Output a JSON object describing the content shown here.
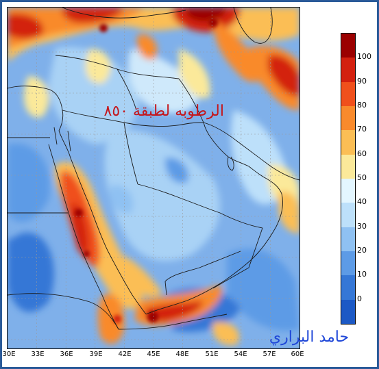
{
  "map": {
    "title": "الرطوبه لطبقة ٨٥٠",
    "author": "حامد البراري",
    "longitude_labels": [
      "30E",
      "33E",
      "36E",
      "39E",
      "42E",
      "45E",
      "48E",
      "51E",
      "54E",
      "57E",
      "60E"
    ],
    "legend": {
      "ticks": [
        "100",
        "90",
        "80",
        "70",
        "60",
        "50",
        "40",
        "30",
        "20",
        "10",
        "0"
      ],
      "colors": [
        "#9b0000",
        "#d3200f",
        "#f0501c",
        "#f98a2c",
        "#fbbe55",
        "#fbe99a",
        "#e3f6ff",
        "#bde0fa",
        "#8fc1f2",
        "#5d9be6",
        "#3577d6",
        "#1c59c5"
      ]
    }
  }
}
